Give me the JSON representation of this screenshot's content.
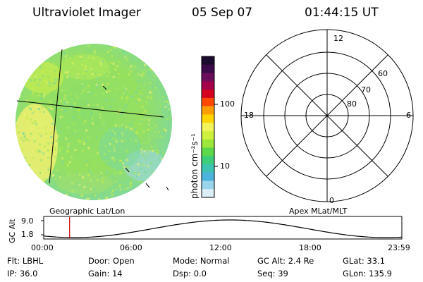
{
  "header": {
    "instrument": "Ultraviolet Imager",
    "date": "05 Sep 07",
    "time": "01:44:15 UT"
  },
  "colorbar": {
    "label": "photon cm⁻²s⁻¹",
    "ticks": [
      "100",
      "10"
    ],
    "colors": [
      "#1a0a2e",
      "#3b0a4a",
      "#6a0d5a",
      "#a3004a",
      "#d4001f",
      "#ff4a00",
      "#ff9e00",
      "#ffd400",
      "#f2f25a",
      "#cdf03c",
      "#9be83a",
      "#5cd84a",
      "#3ccc7a",
      "#3cc4b0",
      "#4ab4dc",
      "#9ad4ec",
      "#dceef6"
    ]
  },
  "left_panel": {
    "label": "Geographic Lat/Lon",
    "image_colors": [
      "#a8e858",
      "#8ede6e",
      "#f0f070",
      "#7ad8a0",
      "#c8ec50"
    ]
  },
  "right_panel": {
    "label": "Apex MLat/MLT",
    "mlt_labels": {
      "top": "12",
      "left": "18",
      "right": "6",
      "bottom": "0"
    },
    "lat_labels": [
      "60",
      "70",
      "80"
    ]
  },
  "timeline": {
    "y_label": "GC Alt",
    "y_ticks": [
      "9.0",
      "1.8"
    ],
    "x_ticks": [
      "00:00",
      "06:00",
      "12:00",
      "18:00",
      "23:59"
    ],
    "marker_time": "01:44",
    "marker_color": "#cc0000"
  },
  "info": {
    "row1": [
      {
        "key": "Flt:",
        "val": "LBHL"
      },
      {
        "key": "Door:",
        "val": "Open"
      },
      {
        "key": "Mode:",
        "val": "Normal"
      },
      {
        "key": "GC Alt:",
        "val": "2.4 Re"
      },
      {
        "key": "GLat:",
        "val": "33.1"
      }
    ],
    "row2": [
      {
        "key": "IP:",
        "val": "36.0"
      },
      {
        "key": "Gain:",
        "val": "14"
      },
      {
        "key": "Dsp:",
        "val": "0.0"
      },
      {
        "key": "Seq:",
        "val": "39"
      },
      {
        "key": "GLon:",
        "val": "135.9"
      }
    ]
  }
}
